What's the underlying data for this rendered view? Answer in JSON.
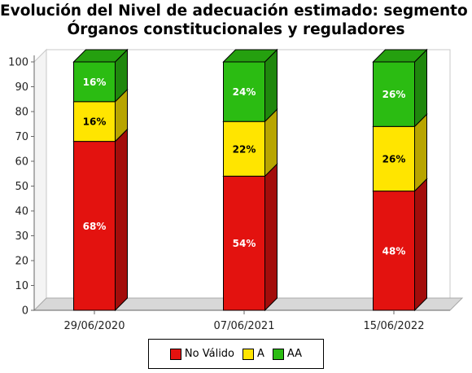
{
  "title_line1": "Evolución del Nivel de adecuación estimado: segmento I.",
  "title_line2": "Órganos constitucionales y reguladores",
  "chart_data": {
    "type": "bar",
    "stacked": true,
    "categories": [
      "29/06/2020",
      "07/06/2021",
      "15/06/2022"
    ],
    "series": [
      {
        "name": "No Válido",
        "values": [
          68,
          54,
          48
        ],
        "labels": [
          "68%",
          "54%",
          "48%"
        ],
        "color": "#e3120f",
        "text_color": "#ffffff"
      },
      {
        "name": "A",
        "values": [
          16,
          22,
          26
        ],
        "labels": [
          "16%",
          "22%",
          "26%"
        ],
        "color": "#ffe500",
        "text_color": "#000000"
      },
      {
        "name": "AA",
        "values": [
          16,
          24,
          26
        ],
        "labels": [
          "16%",
          "24%",
          "26%"
        ],
        "color": "#2bbc12",
        "text_color": "#ffffff"
      }
    ],
    "y_ticks": [
      "0",
      "10",
      "20",
      "30",
      "40",
      "50",
      "60",
      "70",
      "80",
      "90",
      "100"
    ],
    "ylim": [
      0,
      100
    ],
    "grid": false,
    "legend": "bottom-center"
  }
}
